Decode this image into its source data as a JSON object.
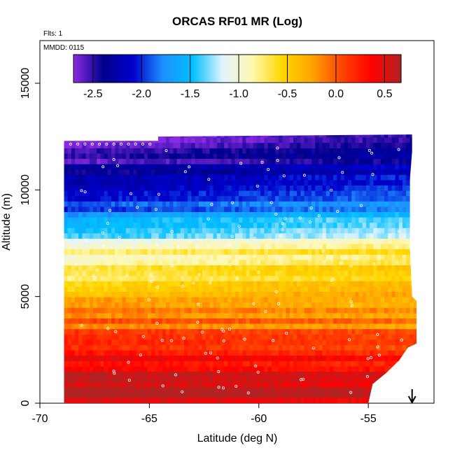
{
  "chart_data": {
    "type": "heatmap",
    "title": "ORCAS RF01 MR (Log)",
    "annotations": {
      "flights": "Flts: 1",
      "date": "MMDD: 0115"
    },
    "xlabel": "Latitude (deg N)",
    "ylabel": "Altitude (m)",
    "xlim": [
      -70,
      -52
    ],
    "ylim": [
      0,
      17000
    ],
    "x_ticks": [
      -70,
      -65,
      -60,
      -55
    ],
    "x_tick_labels": [
      "-70",
      "-65",
      "-60",
      "-55"
    ],
    "y_ticks": [
      0,
      5000,
      10000,
      15000
    ],
    "y_tick_labels": [
      "0",
      "5000",
      "10000",
      "15000"
    ],
    "colorbar": {
      "range": [
        -2.7,
        0.67
      ],
      "ticks": [
        -2.5,
        -2.0,
        -1.5,
        -1.0,
        -0.5,
        0.0,
        0.5
      ],
      "tick_labels": [
        "-2.5",
        "-2.0",
        "-1.5",
        "-1.0",
        "-0.5",
        "0.0",
        "0.5"
      ],
      "colors": [
        "#8a2be2",
        "#00008b",
        "#0000cd",
        "#1e90ff",
        "#00bfff",
        "#e0f4ff",
        "#fff8b0",
        "#ffd700",
        "#ffa500",
        "#ff4500",
        "#ff0000",
        "#b22222"
      ]
    },
    "data_extent": {
      "lat_min": -68.9,
      "lat_max": -53.0,
      "alt_min": 0,
      "alt_max": 12400
    },
    "profile": [
      {
        "alt": 12000,
        "value": -2.6
      },
      {
        "alt": 11000,
        "value": -2.3
      },
      {
        "alt": 10000,
        "value": -2.1
      },
      {
        "alt": 9000,
        "value": -1.7
      },
      {
        "alt": 8000,
        "value": -1.2
      },
      {
        "alt": 7000,
        "value": -0.8
      },
      {
        "alt": 6000,
        "value": -0.55
      },
      {
        "alt": 5000,
        "value": -0.35
      },
      {
        "alt": 4000,
        "value": -0.15
      },
      {
        "alt": 3000,
        "value": 0.05
      },
      {
        "alt": 2000,
        "value": 0.3
      },
      {
        "alt": 1000,
        "value": 0.5
      },
      {
        "alt": 0,
        "value": 0.55
      }
    ],
    "arrow_marker": {
      "lat": -53.0,
      "direction": "down"
    }
  }
}
